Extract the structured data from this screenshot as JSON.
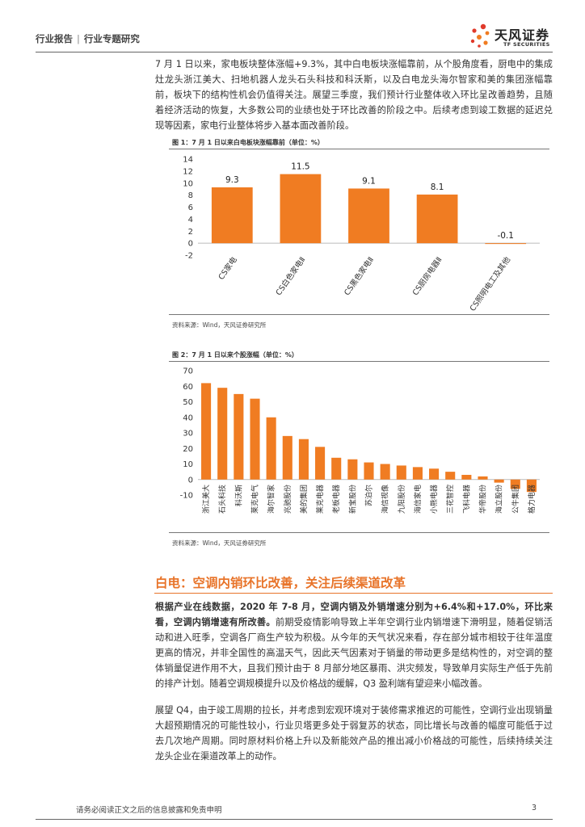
{
  "header": {
    "category": "行业报告",
    "separator": "|",
    "subcategory": "行业专题研究",
    "logo_text": "天风证券",
    "logo_en": "TF SECURITIES"
  },
  "intro_paragraph": "7 月 1 日以来，家电板块整体涨幅+9.3%，其中白电板块涨幅靠前，从个股角度看，厨电中的集成灶龙头浙江美大、扫地机器人龙头石头科技和科沃斯，以及白电龙头海尔智家和美的集团涨幅靠前，板块下的结构性机会仍值得关注。展望三季度，我们预计行业整体收入环比呈改善趋势，且随着经济活动的恢复，大多数公司的业绩也处于环比改善的阶段之中。后续考虑到竣工数据的延迟兑现等因素，家电行业整体将步入基本面改善阶段。",
  "figure1": {
    "title": "图 1：7 月 1 日以来白电板块涨幅靠前（单位：%）",
    "source": "资料来源：Wind，天风证券研究所"
  },
  "figure2": {
    "title": "图 2：7 月 1 日以来个股涨幅（单位：%）",
    "source": "资料来源：Wind，天风证券研究所"
  },
  "section": {
    "title": "白电：空调内销环比改善，关注后续渠道改革",
    "p1_bold": "根据产业在线数据，2020 年 7-8 月，空调内销及外销增速分别为+6.4%和+17.0%，环比来看，空调内销增速有所改善。",
    "p1_rest": "前期受疫情影响导致上半年空调行业内销增速下滑明显，随着促销活动和进入旺季，空调各厂商生产较为积极。从今年的天气状况来看，存在部分城市相较于往年温度更高的情况，并非全国性的高温天气，因此天气因素对于销量的带动更多是结构性的，对空调的整体销量促进作用不大，且我们预计由于 8 月部分地区暴雨、洪灾频发，导致单月实际生产低于先前的排产计划。随着空调规模提升以及价格战的缓解，Q3 盈利端有望迎来小幅改善。",
    "p2": "展望 Q4，由于竣工周期的拉长，并考虑到宏观环境对于装修需求推迟的可能性，空调行业出现销量大超预期情况的可能性较小，行业贝塔更多处于弱复苏的状态，同比增长与改善的幅度可能低于过去几次地产周期。同时原材料价格上升以及新能效产品的推出减小价格战的可能性，后续持续关注龙头企业在渠道改革上的动作。"
  },
  "footer": {
    "disclaimer": "请务必阅读正文之后的信息披露和免责申明",
    "page": "3"
  },
  "colors": {
    "bar": "#f07c22",
    "accent": "#e8742a"
  },
  "chart_data": [
    {
      "type": "bar",
      "title": "图 1：7 月 1 日以来白电板块涨幅靠前（单位：%）",
      "categories": [
        "CS家电",
        "CS白色家电Ⅱ",
        "CS黑色家电Ⅱ",
        "CS厨房电器Ⅱ",
        "CS照明电工及其他"
      ],
      "values": [
        9.3,
        11.5,
        9.1,
        8.1,
        -0.1
      ],
      "value_labels": [
        "9.3",
        "11.5",
        "9.1",
        "8.1",
        "-0.1"
      ],
      "yticks": [
        "-2",
        "0",
        "2",
        "4",
        "6",
        "8",
        "10",
        "12",
        "14"
      ],
      "ylim": [
        -2,
        14
      ],
      "grid": false
    },
    {
      "type": "bar",
      "title": "图 2：7 月 1 日以来个股涨幅（单位：%）",
      "categories": [
        "浙江美大",
        "石头科技",
        "科沃斯",
        "莱克电气",
        "海尔智家",
        "兆驰股份",
        "美的集团",
        "莱克电器",
        "老板电器",
        "新宝股份",
        "苏泊尔",
        "海信视像",
        "九阳股份",
        "海信家电",
        "小熊电器",
        "三花智控",
        "飞科电器",
        "华帝股份",
        "海立股份",
        "公牛集团",
        "格力电器"
      ],
      "values": [
        62,
        59,
        55,
        52,
        40,
        28,
        26,
        21,
        14,
        13,
        11,
        10,
        9,
        8,
        7,
        5,
        3,
        2,
        -2,
        -6,
        -8
      ],
      "yticks": [
        "-10",
        "0",
        "10",
        "20",
        "30",
        "40",
        "50",
        "60",
        "70"
      ],
      "ylim": [
        -10,
        70
      ],
      "grid": false
    }
  ]
}
